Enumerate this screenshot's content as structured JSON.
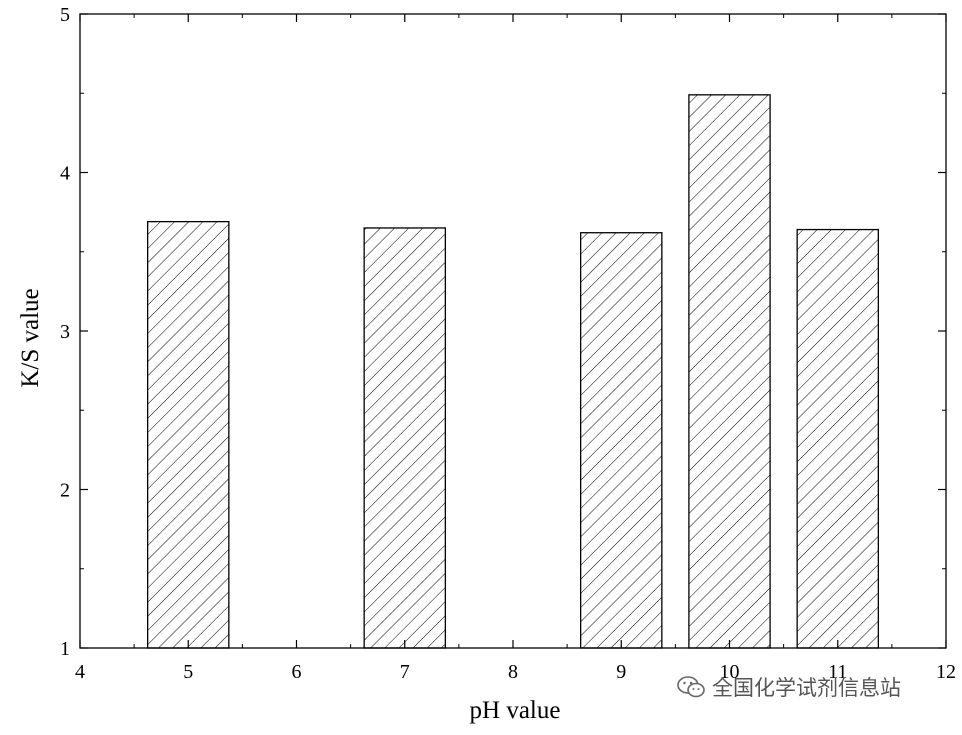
{
  "chart_data": {
    "type": "bar",
    "x": [
      5,
      7,
      9,
      10,
      11
    ],
    "values": [
      3.69,
      3.65,
      3.62,
      4.49,
      3.64
    ],
    "xlabel": "pH value",
    "ylabel": "K/S value",
    "xlim": [
      4,
      12
    ],
    "ylim": [
      1,
      5
    ],
    "xticks": [
      "4",
      "5",
      "6",
      "7",
      "8",
      "9",
      "10",
      "11",
      "12"
    ],
    "yticks": [
      "1",
      "2",
      "3",
      "4",
      "5"
    ],
    "bar_fill": "hatched",
    "grid": false
  },
  "watermark": {
    "icon": "wechat-icon",
    "text": "全国化学试剂信息站"
  }
}
